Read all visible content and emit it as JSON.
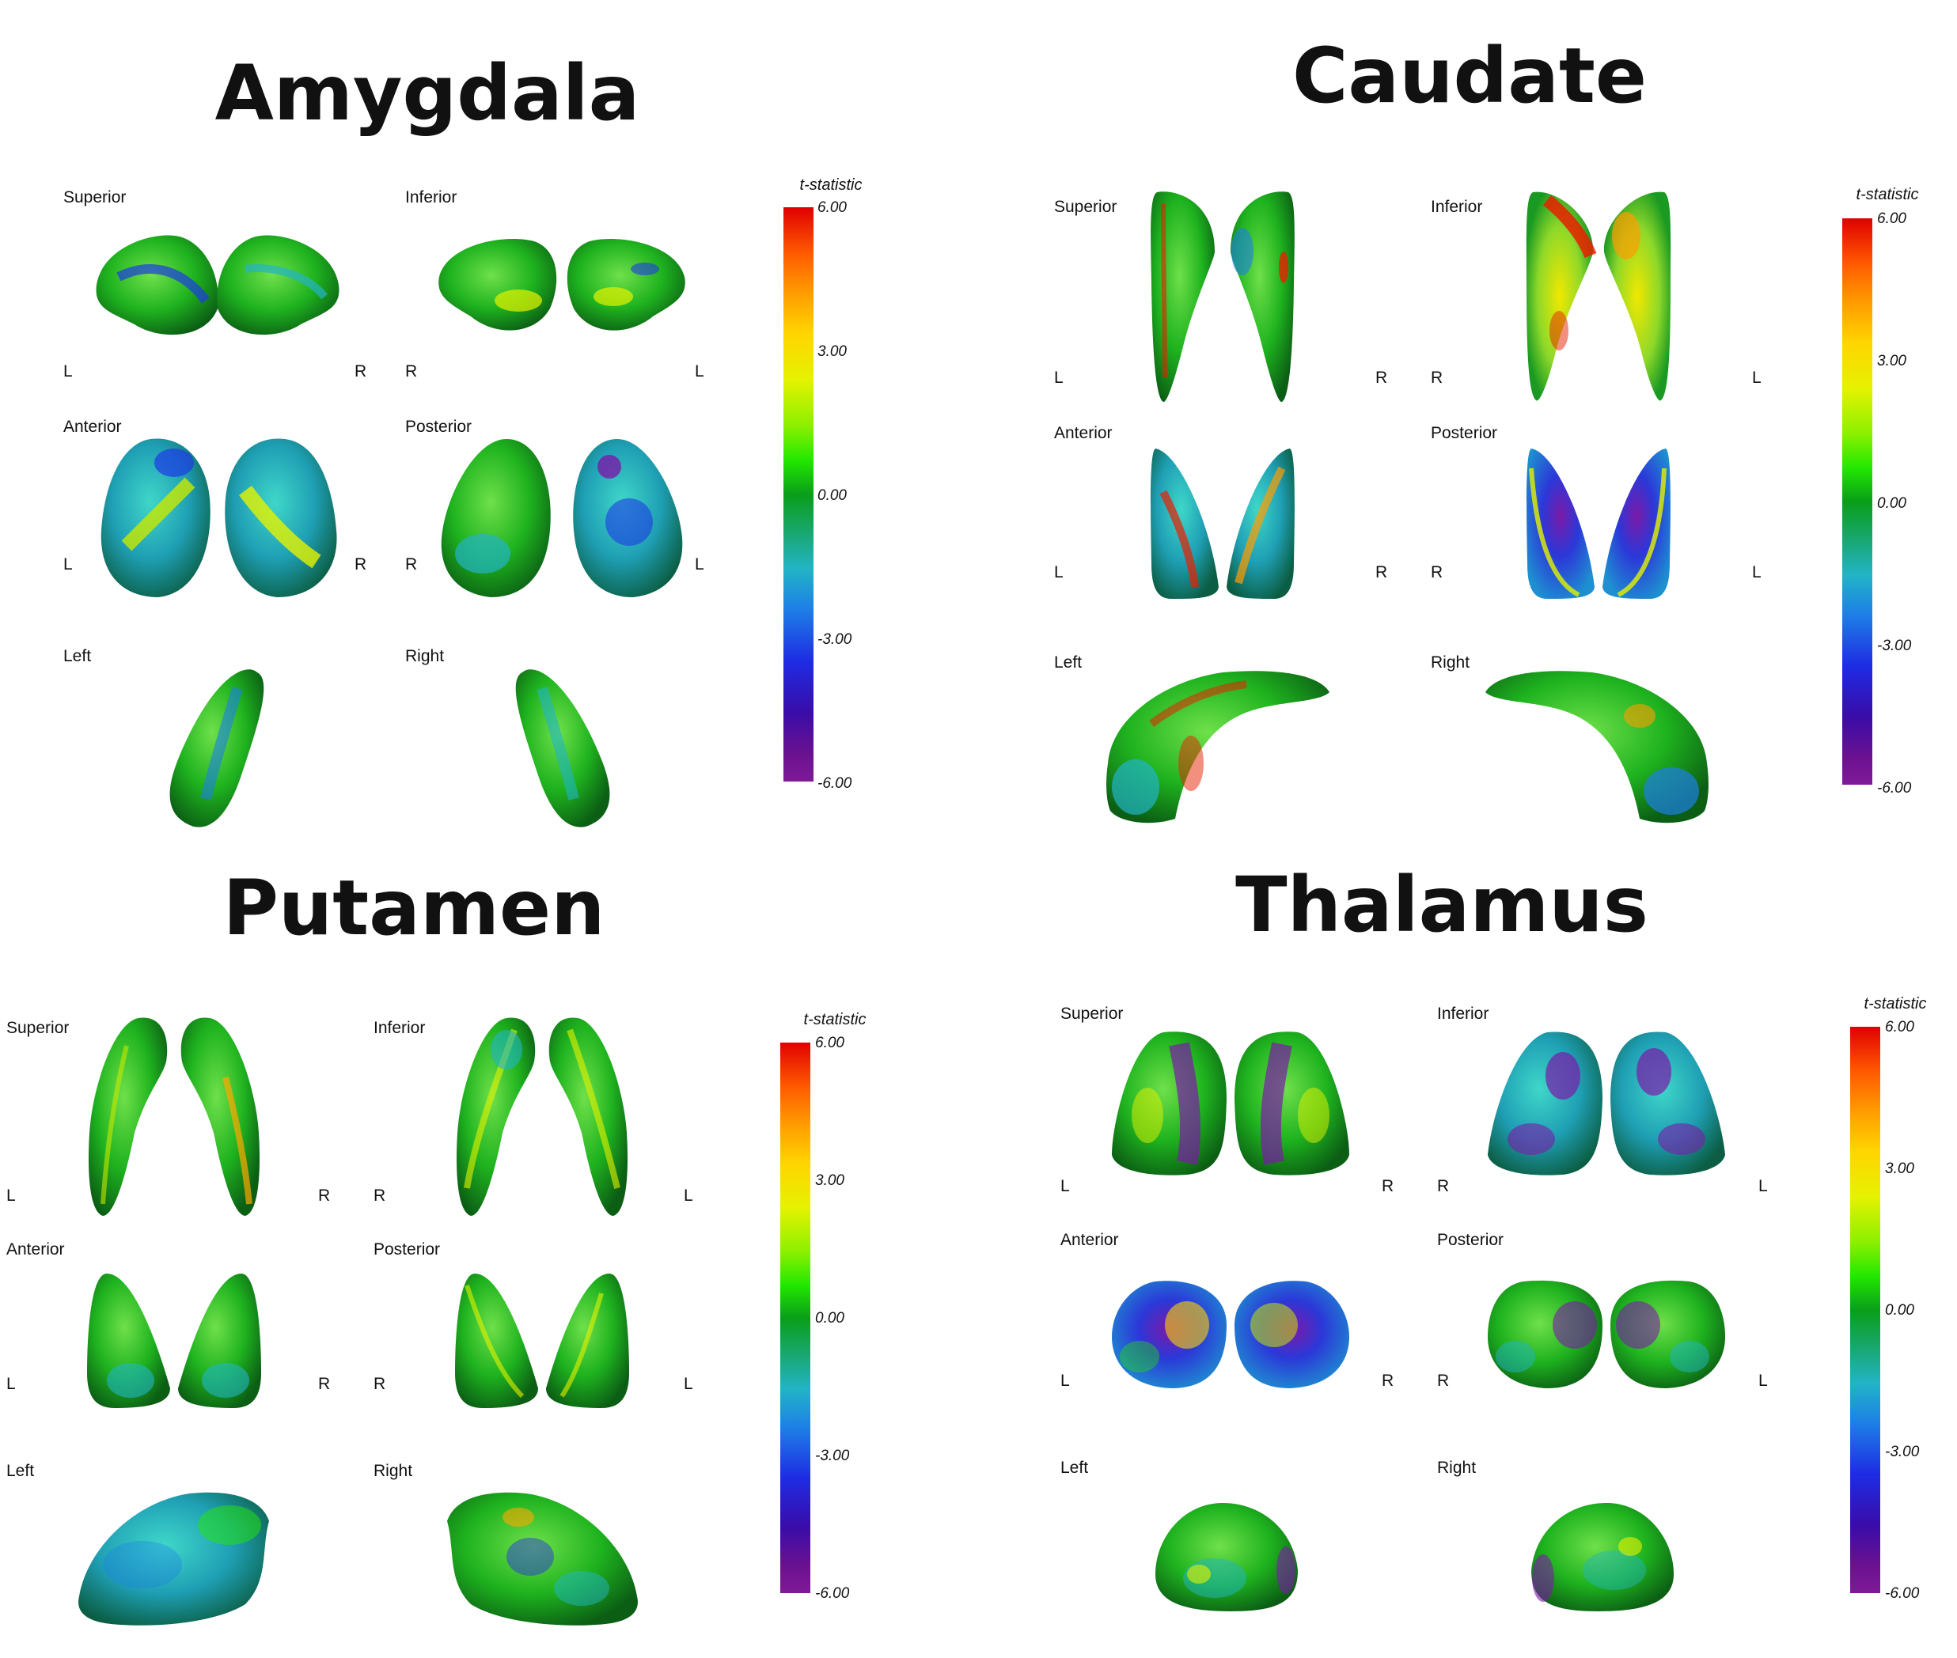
{
  "colorbar": {
    "title": "t-statistic",
    "ticks": [
      "6.00",
      "3.00",
      "0.00",
      "-3.00",
      "-6.00"
    ]
  },
  "colors": {
    "red": "#e00000",
    "orange": "#ff9d00",
    "yellow": "#e5f200",
    "green": "#23e800",
    "dark_green": "#0a7d19",
    "cyan": "#22b4c6",
    "blue": "#1e3be4",
    "purple": "#6a1190"
  },
  "panels": {
    "amygdala": {
      "title": "Amygdala",
      "views": [
        "Superior",
        "Inferior",
        "Anterior",
        "Posterior",
        "Left",
        "Right"
      ],
      "orient": {
        "row1_a": [
          "L",
          "R"
        ],
        "row1_b": [
          "R",
          "L"
        ],
        "row2_a": [
          "L",
          "R"
        ],
        "row2_b": [
          "R",
          "L"
        ]
      }
    },
    "caudate": {
      "title": "Caudate",
      "views": [
        "Superior",
        "Inferior",
        "Anterior",
        "Posterior",
        "Left",
        "Right"
      ],
      "orient": {
        "row1_a": [
          "L",
          "R"
        ],
        "row1_b": [
          "R",
          "L"
        ],
        "row2_a": [
          "L",
          "R"
        ],
        "row2_b": [
          "R",
          "L"
        ]
      }
    },
    "putamen": {
      "title": "Putamen",
      "views": [
        "Superior",
        "Inferior",
        "Anterior",
        "Posterior",
        "Left",
        "Right"
      ],
      "orient": {
        "row1_a": [
          "L",
          "R"
        ],
        "row1_b": [
          "R",
          "L"
        ],
        "row2_a": [
          "L",
          "R"
        ],
        "row2_b": [
          "R",
          "L"
        ]
      }
    },
    "thalamus": {
      "title": "Thalamus",
      "views": [
        "Superior",
        "Inferior",
        "Anterior",
        "Posterior",
        "Left",
        "Right"
      ],
      "orient": {
        "row1_a": [
          "L",
          "R"
        ],
        "row1_b": [
          "R",
          "L"
        ],
        "row2_a": [
          "L",
          "R"
        ],
        "row2_b": [
          "R",
          "L"
        ]
      }
    }
  }
}
